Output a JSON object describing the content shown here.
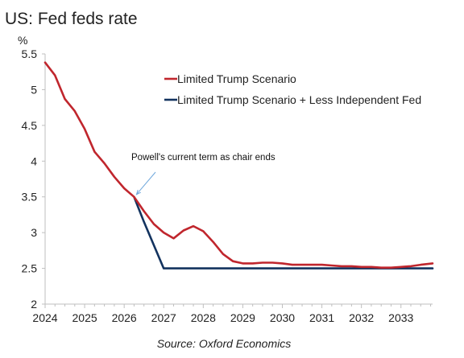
{
  "chart_data": {
    "type": "line",
    "title": "US: Fed feds rate",
    "ylabel": "%",
    "ylim": [
      2,
      5.5
    ],
    "yticks": [
      "2",
      "2.5",
      "3",
      "3.5",
      "4",
      "4.5",
      "5",
      "5.5"
    ],
    "xlim": [
      2024,
      2033.8
    ],
    "xticks": [
      "2024",
      "2025",
      "2026",
      "2027",
      "2028",
      "2029",
      "2030",
      "2031",
      "2032",
      "2033"
    ],
    "grid": false,
    "legend_position": "top-right",
    "series": [
      {
        "name": "Limited Trump Scenario",
        "color": "#c0262d",
        "x": [
          2024.0,
          2024.25,
          2024.5,
          2024.75,
          2025.0,
          2025.25,
          2025.5,
          2025.75,
          2026.0,
          2026.25,
          2026.5,
          2026.75,
          2027.0,
          2027.25,
          2027.5,
          2027.75,
          2028.0,
          2028.25,
          2028.5,
          2028.75,
          2029.0,
          2029.25,
          2029.5,
          2029.75,
          2030.0,
          2030.25,
          2030.5,
          2030.75,
          2031.0,
          2031.25,
          2031.5,
          2031.75,
          2032.0,
          2032.25,
          2032.5,
          2032.75,
          2033.0,
          2033.25,
          2033.5,
          2033.8
        ],
        "values": [
          5.38,
          5.2,
          4.87,
          4.7,
          4.45,
          4.13,
          3.97,
          3.78,
          3.62,
          3.5,
          3.3,
          3.12,
          3.0,
          2.92,
          3.03,
          3.09,
          3.02,
          2.87,
          2.7,
          2.6,
          2.57,
          2.57,
          2.58,
          2.58,
          2.57,
          2.55,
          2.55,
          2.55,
          2.55,
          2.54,
          2.53,
          2.53,
          2.52,
          2.52,
          2.51,
          2.51,
          2.52,
          2.53,
          2.55,
          2.57
        ]
      },
      {
        "name": "Limited Trump Scenario + Less Independent Fed",
        "color": "#13335f",
        "x": [
          2026.25,
          2026.5,
          2027.0,
          2033.8
        ],
        "values": [
          3.5,
          3.15,
          2.5,
          2.5
        ]
      }
    ],
    "annotations": [
      {
        "text": "Powell's current term as chair ends",
        "x": 2026.25,
        "y": 3.5
      }
    ],
    "source": "Source: Oxford Economics"
  }
}
